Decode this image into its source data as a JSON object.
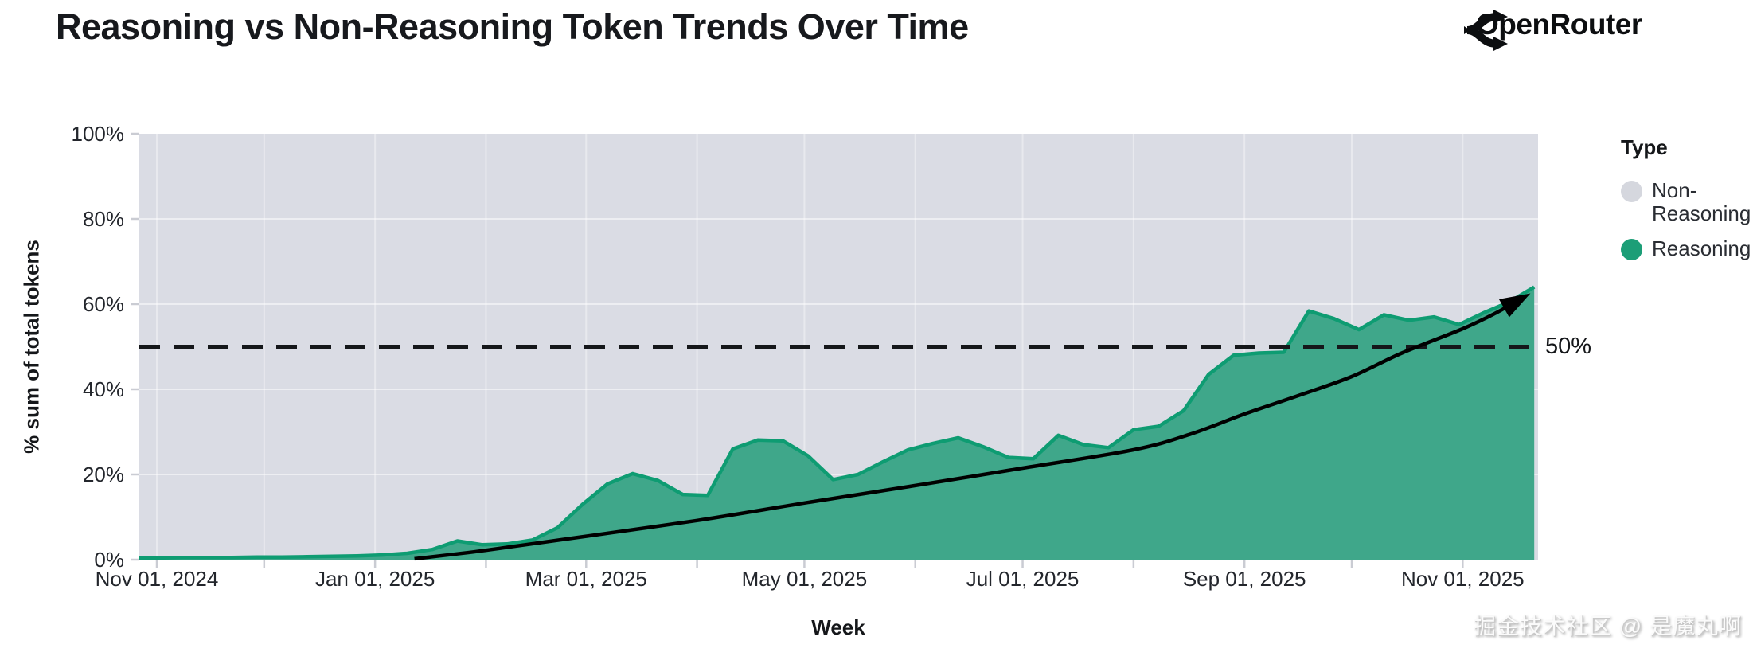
{
  "header": {
    "brand": "OpenRouter"
  },
  "watermark": "掘金技术社区 @ 是魔丸啊",
  "chart_data": {
    "type": "area",
    "title": "Reasoning vs Non-Reasoning Token Trends Over Time",
    "xlabel": "Week",
    "ylabel": "% sum of total tokens",
    "ylim": [
      0,
      100
    ],
    "grid": true,
    "legend_position": "right",
    "legend": {
      "title": "Type",
      "items": [
        {
          "label": "Non-Reasoning",
          "color": "#D5D7DE"
        },
        {
          "label": "Reasoning",
          "color": "#1C9E77"
        }
      ]
    },
    "y_ticks": [
      {
        "label": "0%",
        "value": 0
      },
      {
        "label": "20%",
        "value": 20
      },
      {
        "label": "40%",
        "value": 40
      },
      {
        "label": "60%",
        "value": 60
      },
      {
        "label": "80%",
        "value": 80
      },
      {
        "label": "100%",
        "value": 100
      }
    ],
    "x_ticks": [
      {
        "label": "Nov 01, 2024",
        "date": "2024-11-01"
      },
      {
        "label": "Jan 01, 2025",
        "date": "2025-01-01"
      },
      {
        "label": "Mar 01, 2025",
        "date": "2025-03-01"
      },
      {
        "label": "May 01, 2025",
        "date": "2025-05-01"
      },
      {
        "label": "Jul 01, 2025",
        "date": "2025-07-01"
      },
      {
        "label": "Sep 01, 2025",
        "date": "2025-09-01"
      },
      {
        "label": "Nov 01, 2025",
        "date": "2025-11-01"
      }
    ],
    "month_ticks": [
      "2024-11-01",
      "2024-12-01",
      "2025-01-01",
      "2025-02-01",
      "2025-03-01",
      "2025-04-01",
      "2025-05-01",
      "2025-06-01",
      "2025-07-01",
      "2025-08-01",
      "2025-09-01",
      "2025-10-01",
      "2025-11-01"
    ],
    "background_series": {
      "name": "Non-Reasoning",
      "color": "#DADCE4",
      "note": "remainder to 100%"
    },
    "series": [
      {
        "name": "Reasoning",
        "fill_color": "#3FA78A",
        "stroke_color": "#0E9C72",
        "unit": "% of total tokens per week",
        "points": [
          [
            "2024-10-25",
            0.4
          ],
          [
            "2024-11-01",
            0.4
          ],
          [
            "2024-11-08",
            0.5
          ],
          [
            "2024-11-15",
            0.5
          ],
          [
            "2024-11-22",
            0.5
          ],
          [
            "2024-11-29",
            0.6
          ],
          [
            "2024-12-06",
            0.6
          ],
          [
            "2024-12-13",
            0.7
          ],
          [
            "2024-12-20",
            0.8
          ],
          [
            "2024-12-27",
            0.9
          ],
          [
            "2025-01-03",
            1.1
          ],
          [
            "2025-01-10",
            1.5
          ],
          [
            "2025-01-17",
            2.4
          ],
          [
            "2025-01-24",
            4.4
          ],
          [
            "2025-01-31",
            3.5
          ],
          [
            "2025-02-07",
            3.7
          ],
          [
            "2025-02-14",
            4.6
          ],
          [
            "2025-02-21",
            7.5
          ],
          [
            "2025-02-28",
            13.0
          ],
          [
            "2025-03-07",
            17.8
          ],
          [
            "2025-03-14",
            20.2
          ],
          [
            "2025-03-21",
            18.6
          ],
          [
            "2025-03-28",
            15.3
          ],
          [
            "2025-04-04",
            15.1
          ],
          [
            "2025-04-11",
            26.0
          ],
          [
            "2025-04-18",
            28.1
          ],
          [
            "2025-04-25",
            27.9
          ],
          [
            "2025-05-02",
            24.4
          ],
          [
            "2025-05-09",
            18.8
          ],
          [
            "2025-05-16",
            20.0
          ],
          [
            "2025-05-23",
            23.0
          ],
          [
            "2025-05-30",
            25.8
          ],
          [
            "2025-06-06",
            27.3
          ],
          [
            "2025-06-13",
            28.6
          ],
          [
            "2025-06-20",
            26.5
          ],
          [
            "2025-06-27",
            24.0
          ],
          [
            "2025-07-04",
            23.7
          ],
          [
            "2025-07-11",
            29.2
          ],
          [
            "2025-07-18",
            27.0
          ],
          [
            "2025-07-25",
            26.3
          ],
          [
            "2025-08-01",
            30.5
          ],
          [
            "2025-08-08",
            31.3
          ],
          [
            "2025-08-15",
            35.0
          ],
          [
            "2025-08-22",
            43.5
          ],
          [
            "2025-08-29",
            48.0
          ],
          [
            "2025-09-05",
            48.5
          ],
          [
            "2025-09-12",
            48.7
          ],
          [
            "2025-09-19",
            58.4
          ],
          [
            "2025-09-26",
            56.6
          ],
          [
            "2025-10-03",
            54.0
          ],
          [
            "2025-10-10",
            57.5
          ],
          [
            "2025-10-17",
            56.2
          ],
          [
            "2025-10-24",
            57.0
          ],
          [
            "2025-10-31",
            55.2
          ],
          [
            "2025-11-07",
            58.0
          ],
          [
            "2025-11-14",
            60.5
          ],
          [
            "2025-11-21",
            64.0
          ]
        ]
      }
    ],
    "annotations": {
      "hline": {
        "label": "50%",
        "value": 50,
        "style": "dashed",
        "color": "#15171a"
      },
      "trend_arrow": {
        "color": "#000000",
        "points": [
          [
            "2025-01-12",
            0.2
          ],
          [
            "2025-02-01",
            2.2
          ],
          [
            "2025-03-01",
            5.5
          ],
          [
            "2025-04-01",
            9.2
          ],
          [
            "2025-05-01",
            13.3
          ],
          [
            "2025-06-01",
            17.4
          ],
          [
            "2025-07-01",
            21.5
          ],
          [
            "2025-08-01",
            25.8
          ],
          [
            "2025-08-17",
            29.5
          ],
          [
            "2025-09-01",
            34.2
          ],
          [
            "2025-09-16",
            38.5
          ],
          [
            "2025-10-01",
            43.0
          ],
          [
            "2025-10-15",
            48.5
          ],
          [
            "2025-11-01",
            54.2
          ],
          [
            "2025-11-10",
            57.8
          ],
          [
            "2025-11-18",
            61.6
          ]
        ]
      }
    }
  }
}
